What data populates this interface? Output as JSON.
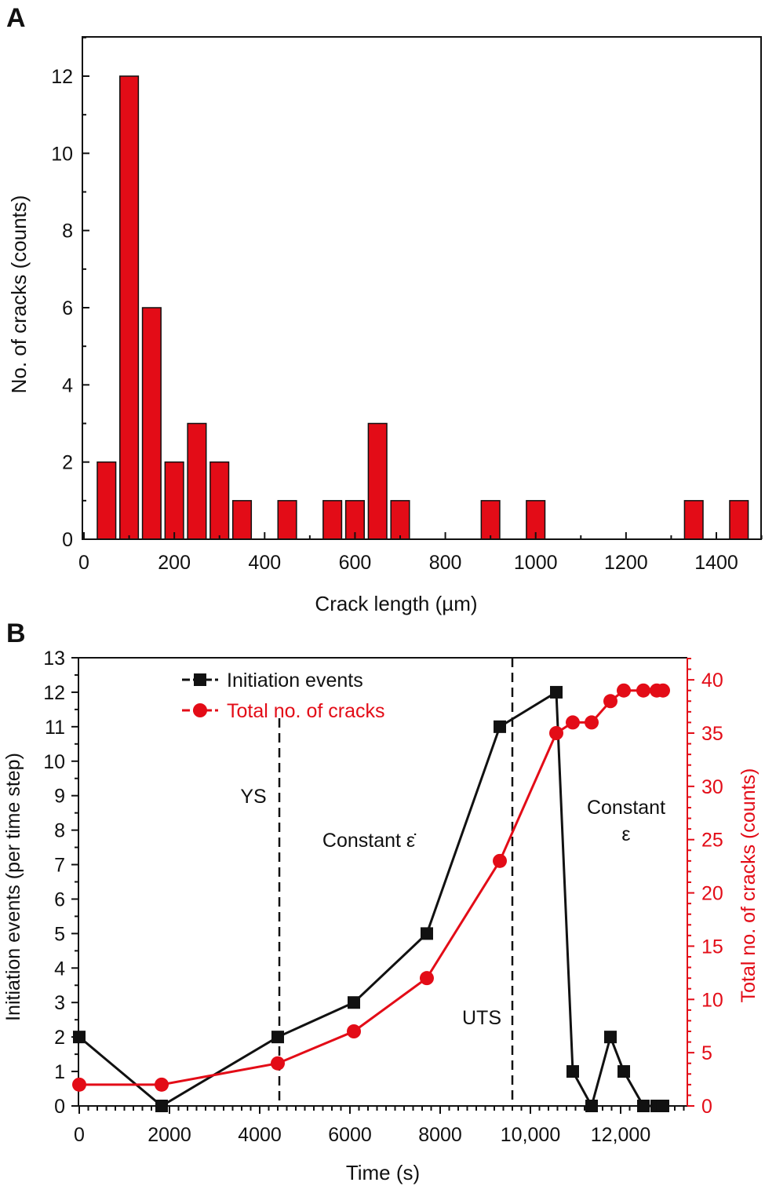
{
  "colors": {
    "bar": "#e30c17",
    "red_series": "#e30c17",
    "black_series": "#111111",
    "axis": "#111111"
  },
  "chart_data": [
    {
      "panel_label": "A",
      "type": "bar",
      "xlabel": "Crack length (µm)",
      "ylabel": "No. of cracks (counts)",
      "xlim": [
        0,
        1500
      ],
      "ylim": [
        0,
        13
      ],
      "xticks": [
        0,
        200,
        400,
        600,
        800,
        1000,
        1200,
        1400
      ],
      "yticks": [
        0,
        2,
        4,
        6,
        8,
        10,
        12
      ],
      "bin_width": 50,
      "bin_centers": [
        50,
        100,
        150,
        200,
        250,
        300,
        350,
        450,
        550,
        600,
        650,
        700,
        900,
        1000,
        1350,
        1450
      ],
      "values": [
        2,
        12,
        6,
        2,
        3,
        2,
        1,
        1,
        1,
        1,
        3,
        1,
        1,
        1,
        1,
        1
      ],
      "grid": false
    },
    {
      "panel_label": "B",
      "type": "line",
      "xlabel": "Time (s)",
      "ylabel": "Initiation events (per time step)",
      "ylabel_right": "Total no. of cracks (counts)",
      "xlim": [
        0,
        13460
      ],
      "ylim": [
        0,
        13
      ],
      "ylim_right": [
        0,
        42
      ],
      "xticks": [
        0,
        2000,
        4000,
        6000,
        8000,
        10000,
        12000
      ],
      "xtick_labels": [
        "0",
        "2000",
        "4000",
        "6000",
        "8000",
        "10,000",
        "12,000"
      ],
      "yticks": [
        0,
        1,
        2,
        3,
        4,
        5,
        6,
        7,
        8,
        9,
        10,
        11,
        12,
        13
      ],
      "yticks_right": [
        0,
        5,
        10,
        15,
        20,
        25,
        30,
        35,
        40
      ],
      "legend_placement": "top-left",
      "series": [
        {
          "name": "Initiation events",
          "axis": "left",
          "marker": "square",
          "x": [
            0,
            1826,
            4400,
            6087,
            7704,
            9322,
            10574,
            10939,
            11357,
            11774,
            12070,
            12504,
            12800,
            12939
          ],
          "y": [
            2,
            0,
            2,
            3,
            5,
            11,
            12,
            1,
            0,
            2,
            1,
            0,
            0,
            0
          ]
        },
        {
          "name": "Total no. of cracks",
          "axis": "right",
          "marker": "circle",
          "x": [
            0,
            1826,
            4400,
            6087,
            7704,
            9322,
            10574,
            10939,
            11357,
            11774,
            12070,
            12504,
            12800,
            12939
          ],
          "y": [
            2,
            2,
            4,
            7,
            12,
            23,
            35,
            36,
            36,
            38,
            39,
            39,
            39,
            39
          ]
        }
      ],
      "vlines": [
        {
          "x": 4435,
          "label": "YS"
        },
        {
          "x": 9600,
          "label": "UTS"
        }
      ],
      "annotations": [
        {
          "text": "YS"
        },
        {
          "text": "Constant ε̇"
        },
        {
          "text": "UTS"
        },
        {
          "text": "Constant",
          "text2": "ε"
        }
      ],
      "grid": false
    }
  ]
}
